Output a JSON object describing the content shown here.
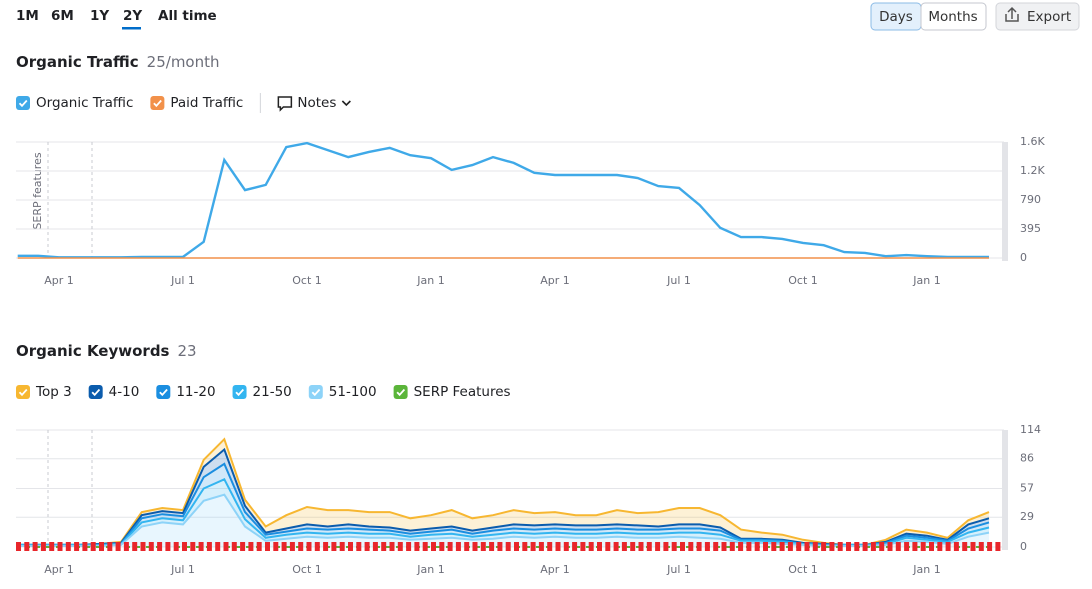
{
  "toolbar": {
    "periods": [
      "1M",
      "6M",
      "1Y",
      "2Y",
      "All time"
    ],
    "views": [
      "Days",
      "Months"
    ],
    "export": "Export"
  },
  "chart_data": [
    {
      "type": "line",
      "title": "Organic Traffic",
      "subtitle": "25/month",
      "notes": "Notes",
      "y_annotation": "SERP features",
      "categories": [
        null,
        null,
        "Apr 1",
        null,
        null,
        null,
        null,
        null,
        "Jul 1",
        null,
        null,
        null,
        null,
        null,
        "Oct 1",
        null,
        null,
        null,
        null,
        null,
        "Jan 1",
        null,
        null,
        null,
        null,
        null,
        "Apr 1",
        null,
        null,
        null,
        null,
        null,
        "Jul 1",
        null,
        null,
        null,
        null,
        null,
        "Oct 1",
        null,
        null,
        null,
        null,
        null,
        "Jan 1",
        null,
        null,
        null
      ],
      "series": [
        {
          "name": "Organic Traffic",
          "color": "#3fa9e8",
          "values": [
            30,
            30,
            10,
            10,
            10,
            10,
            15,
            15,
            15,
            220,
            1335,
            925,
            995,
            1510,
            1565,
            1470,
            1375,
            1445,
            1500,
            1400,
            1360,
            1200,
            1265,
            1375,
            1295,
            1160,
            1130,
            1130,
            1130,
            1130,
            1090,
            980,
            955,
            720,
            410,
            285,
            285,
            260,
            205,
            175,
            80,
            70,
            25,
            40,
            25,
            15,
            15,
            15
          ]
        },
        {
          "name": "Paid Traffic",
          "color": "#f2914a",
          "values": [
            0,
            0,
            0,
            0,
            0,
            0,
            0,
            0,
            0,
            0,
            0,
            0,
            0,
            0,
            0,
            0,
            0,
            0,
            0,
            0,
            0,
            0,
            0,
            0,
            0,
            0,
            0,
            0,
            0,
            0,
            0,
            0,
            0,
            0,
            0,
            0,
            0,
            0,
            0,
            0,
            0,
            0,
            0,
            0,
            0,
            0,
            0,
            0
          ]
        }
      ],
      "ylim": [
        0,
        1580
      ],
      "yticks": [
        0,
        395,
        790,
        {
          "value": 1185,
          "label": "1.2K"
        },
        {
          "value": 1580,
          "label": "1.6K"
        }
      ],
      "grid": true
    },
    {
      "type": "area",
      "stacked": true,
      "title": "Organic Keywords",
      "subtitle": "23",
      "categories": [
        null,
        null,
        "Apr 1",
        null,
        null,
        null,
        null,
        null,
        "Jul 1",
        null,
        null,
        null,
        null,
        null,
        "Oct 1",
        null,
        null,
        null,
        null,
        null,
        "Jan 1",
        null,
        null,
        null,
        null,
        null,
        "Apr 1",
        null,
        null,
        null,
        null,
        null,
        "Jul 1",
        null,
        null,
        null,
        null,
        null,
        "Oct 1",
        null,
        null,
        null,
        null,
        null,
        "Jan 1",
        null,
        null,
        null
      ],
      "series": [
        {
          "name": "Top 3",
          "color": "#f7b731",
          "values": [
            0,
            0,
            0,
            0,
            0,
            1,
            3,
            3,
            3,
            7,
            10,
            6,
            6,
            13,
            17,
            16,
            14,
            14,
            15,
            12,
            13,
            16,
            12,
            12,
            14,
            12,
            12,
            10,
            10,
            14,
            12,
            14,
            16,
            16,
            12,
            9,
            6,
            5,
            3,
            1,
            0,
            0,
            2,
            4,
            3,
            2,
            4,
            6
          ]
        },
        {
          "name": "4-10",
          "color": "#0b5cad",
          "values": [
            0,
            0,
            0,
            0,
            1,
            1,
            3,
            3,
            3,
            10,
            14,
            6,
            2,
            3,
            4,
            3,
            4,
            3,
            3,
            3,
            3,
            3,
            3,
            3,
            4,
            4,
            4,
            4,
            4,
            4,
            4,
            3,
            4,
            4,
            3,
            1,
            1,
            1,
            1,
            1,
            0,
            0,
            1,
            2,
            2,
            1,
            4,
            4
          ]
        },
        {
          "name": "11-20",
          "color": "#1b8ee0",
          "values": [
            0,
            0,
            0,
            0,
            0,
            0,
            4,
            4,
            4,
            11,
            15,
            7,
            3,
            3,
            4,
            4,
            4,
            4,
            3,
            3,
            3,
            4,
            3,
            4,
            4,
            4,
            4,
            4,
            4,
            4,
            4,
            4,
            4,
            4,
            4,
            1,
            1,
            1,
            0,
            0,
            0,
            0,
            1,
            2,
            2,
            1,
            4,
            5
          ]
        },
        {
          "name": "21-50",
          "color": "#33b5f0",
          "values": [
            1,
            1,
            1,
            1,
            1,
            1,
            4,
            4,
            4,
            12,
            15,
            7,
            3,
            4,
            4,
            4,
            4,
            4,
            4,
            3,
            4,
            4,
            3,
            4,
            4,
            4,
            4,
            4,
            4,
            4,
            4,
            4,
            4,
            5,
            4,
            2,
            2,
            2,
            1,
            1,
            1,
            1,
            1,
            3,
            2,
            2,
            4,
            5
          ]
        },
        {
          "name": "51-100",
          "color": "#8dd3f8",
          "values": [
            1,
            1,
            1,
            1,
            1,
            2,
            20,
            24,
            22,
            45,
            51,
            20,
            6,
            8,
            10,
            9,
            10,
            9,
            9,
            7,
            8,
            9,
            7,
            8,
            10,
            9,
            10,
            9,
            9,
            10,
            9,
            9,
            10,
            9,
            8,
            4,
            4,
            3,
            2,
            1,
            1,
            1,
            2,
            6,
            5,
            3,
            10,
            14
          ]
        }
      ],
      "markers": {
        "name": "SERP Features",
        "color": "#5bb53a"
      },
      "ylim": [
        0,
        114
      ],
      "yticks": [
        0,
        29,
        57,
        86,
        114
      ],
      "grid": true
    }
  ]
}
